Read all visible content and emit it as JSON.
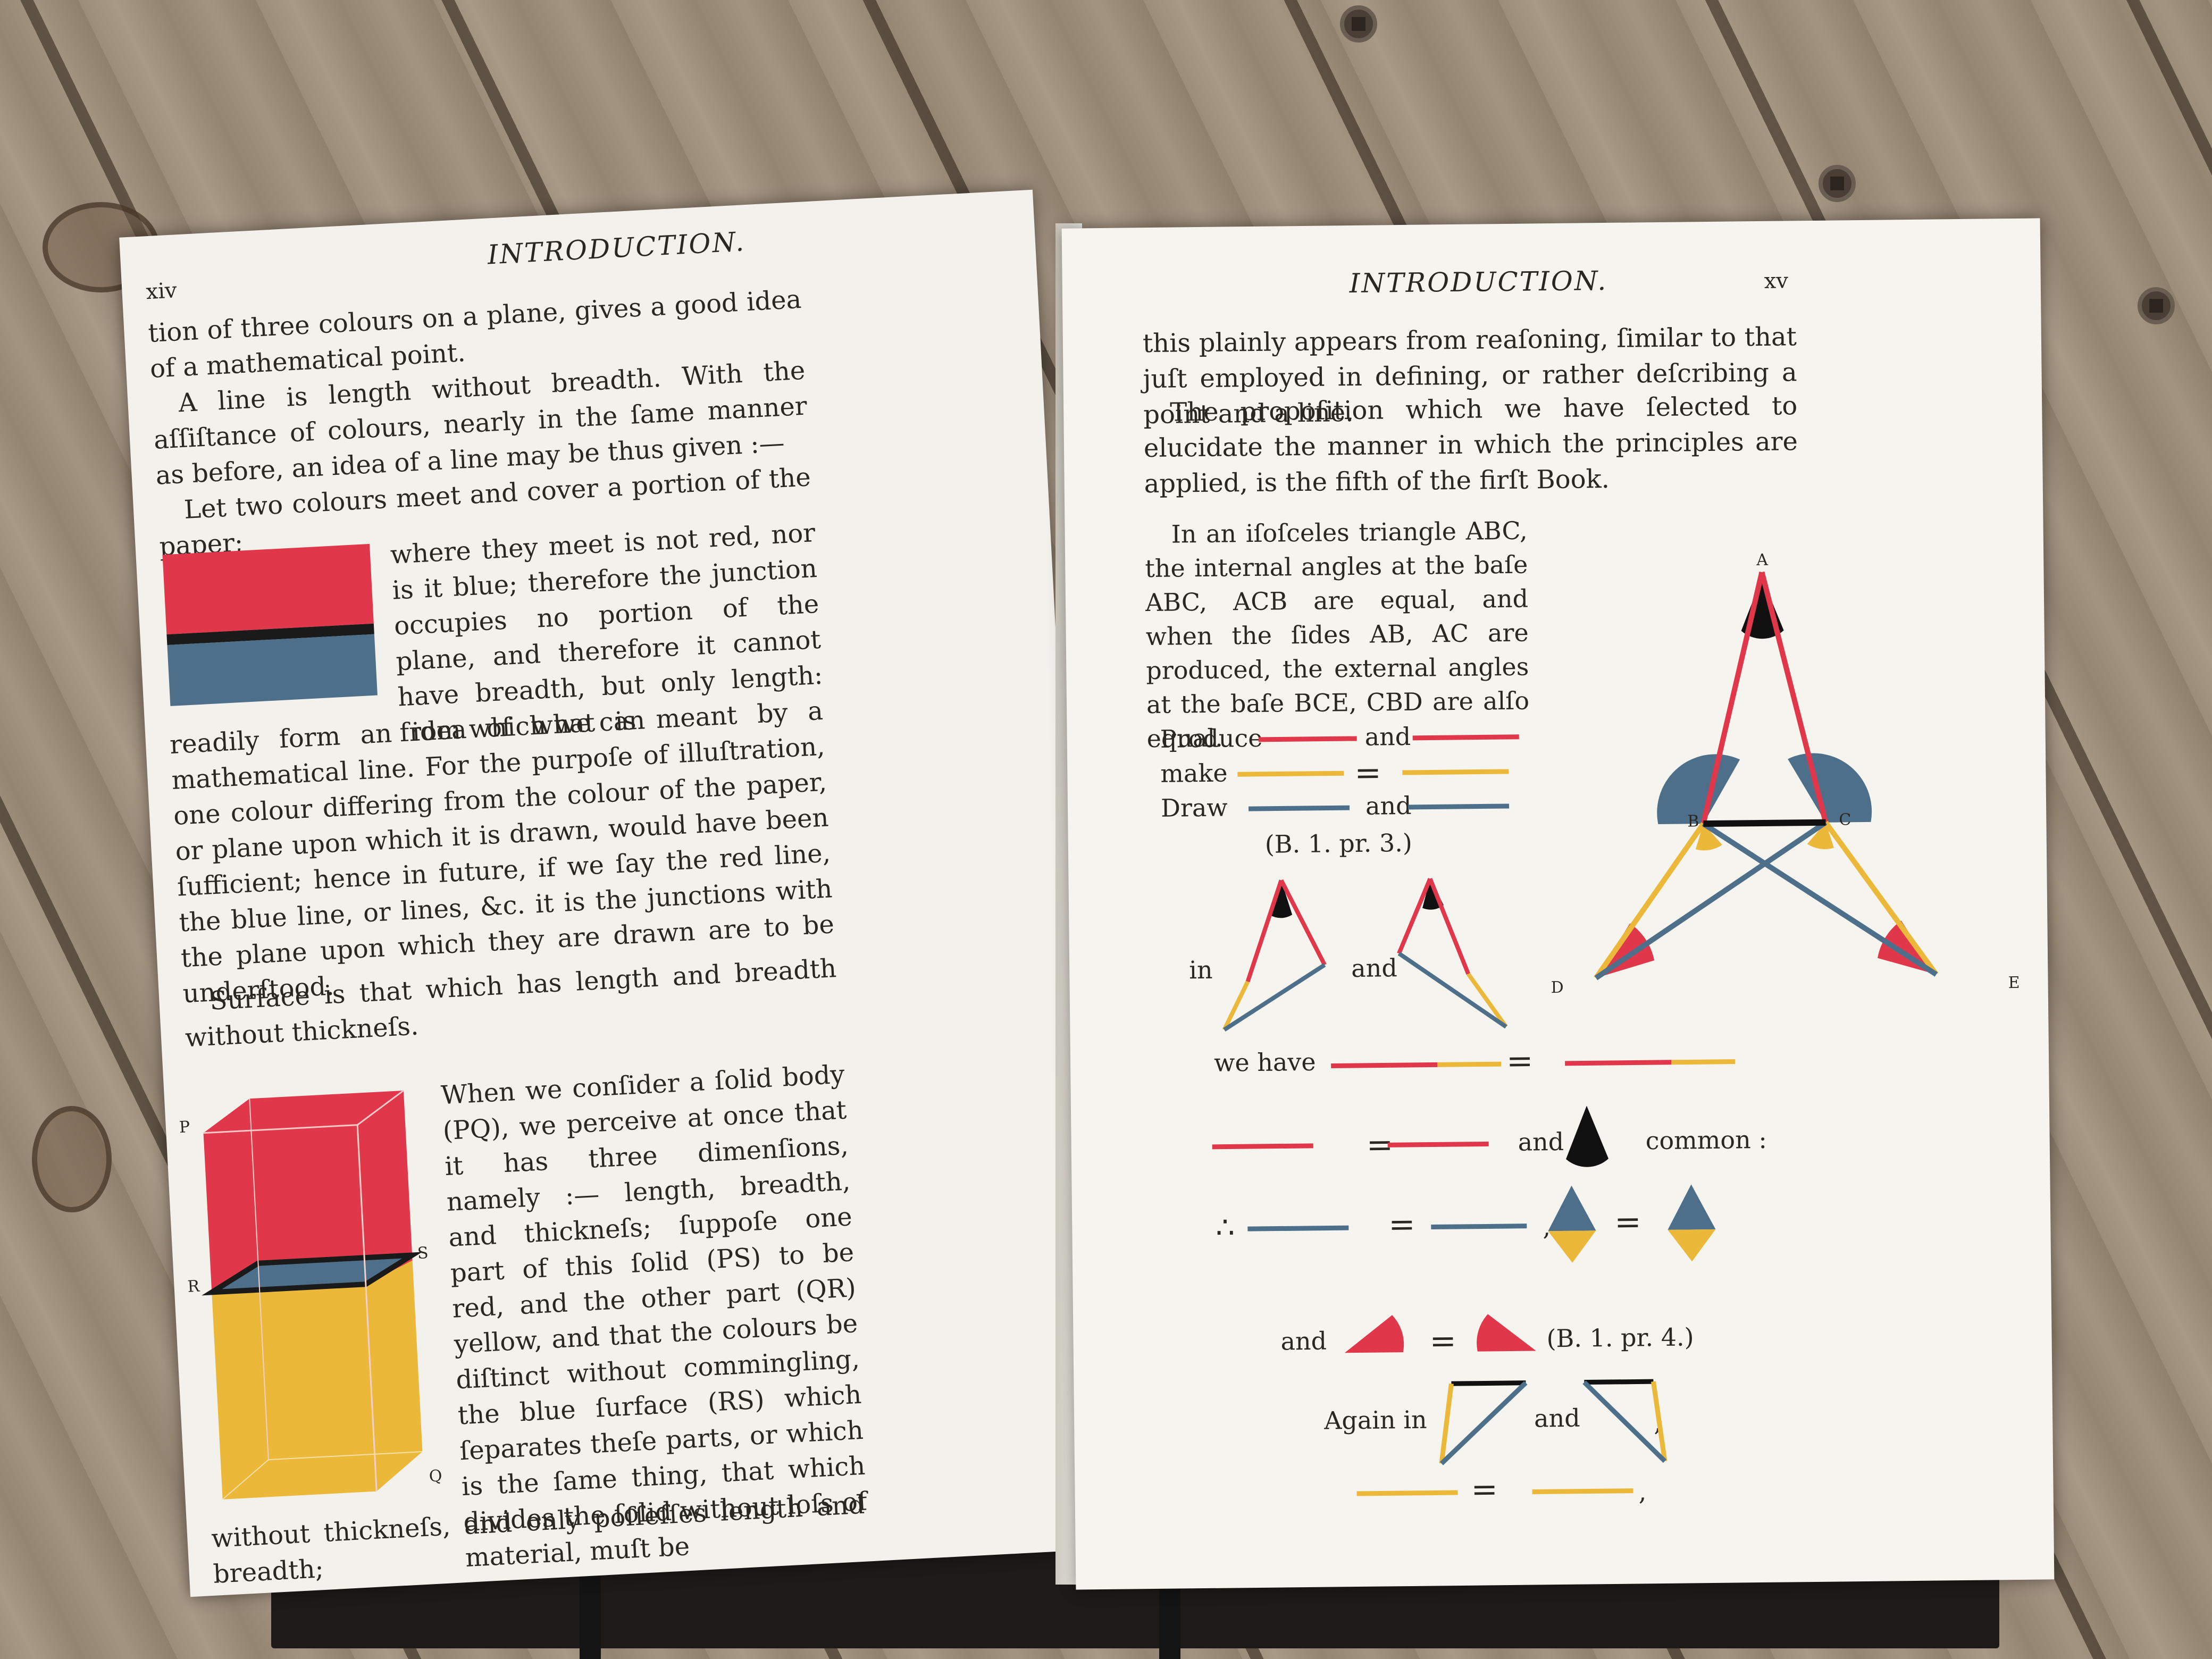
{
  "colors": {
    "red": "#e0384a",
    "blue": "#4e6f8a",
    "yellow": "#ebb83a",
    "black": "#111111",
    "paper": "#f6f4ee"
  },
  "left_page": {
    "page_number": "xiv",
    "header": "INTRODUCTION.",
    "para1": "tion of three colours on a plane, gives a good idea of a mathematical point.",
    "para2": "A line is length without breadth.   With the aſſiſtance of colours, nearly in the ſame manner as before, an idea of a line may be thus given :—",
    "para3_first": "Let two colours meet and cover a portion of the paper;",
    "para3_wrap": "where they meet is not red, nor is it blue; therefore the junction occupies no portion of the plane, and therefore it cannot have breadth, but only length: from which we can",
    "para3_rest": "readily form an idea of what is meant by a mathematical line.  For the purpoſe of illuſtration, one colour differing from the colour of the paper, or plane upon which it is drawn, would have been ſufficient; hence in future, if we ſay the red line, the blue line, or lines, &c. it is the junctions with the plane upon which they are drawn are to be underſtood.",
    "para4": "Surface is that which has length and breadth without thickneſs.",
    "para5_wrap": "When we conſider a ſolid body (PQ), we perceive at once that it has three dimenſions, namely :— length, breadth, and thickneſs; ſuppoſe one part of this ſolid (PS) to be red, and the other part (QR) yellow, and that the colours be diſtinct without commingling, the blue ſurface (RS) which ſeparates theſe parts, or which is the ſame thing, that which divides the ſolid without loſs of material, muſt be",
    "para5_last": "without thickneſs, and only poſſeſſes length and breadth;",
    "solid_labels": {
      "p": "P",
      "r": "R",
      "s": "S",
      "q": "Q"
    }
  },
  "right_page": {
    "page_number": "xv",
    "header": "INTRODUCTION.",
    "para1": "this plainly appears from reaſoning, ſimilar to that juſt employed in defining, or rather deſcribing a point and a line.",
    "para2": "The propoſition which we have ſelected to elucidate the manner in which the principles are applied, is the fifth of the firſt Book.",
    "theorem": "In an iſoſceles triangle ABC, the internal angles at the baſe ABC, ACB are equal, and when the ſides AB, AC are produced, the external angles at the baſe BCE, CBD are alſo equal.",
    "produce": "Produce",
    "make": "make",
    "draw": "Draw",
    "and": "and",
    "equals": "=",
    "ref1": "(B. 1. pr. 3.)",
    "in": "in",
    "we_have": "we have",
    "common": "common :",
    "therefore": "∴",
    "comma": ",",
    "ref2": "(B. 1. pr. 4.)",
    "again_in": "Again in",
    "vertex_labels": {
      "a": "A",
      "b": "B",
      "c": "C",
      "d": "D",
      "e": "E"
    }
  }
}
